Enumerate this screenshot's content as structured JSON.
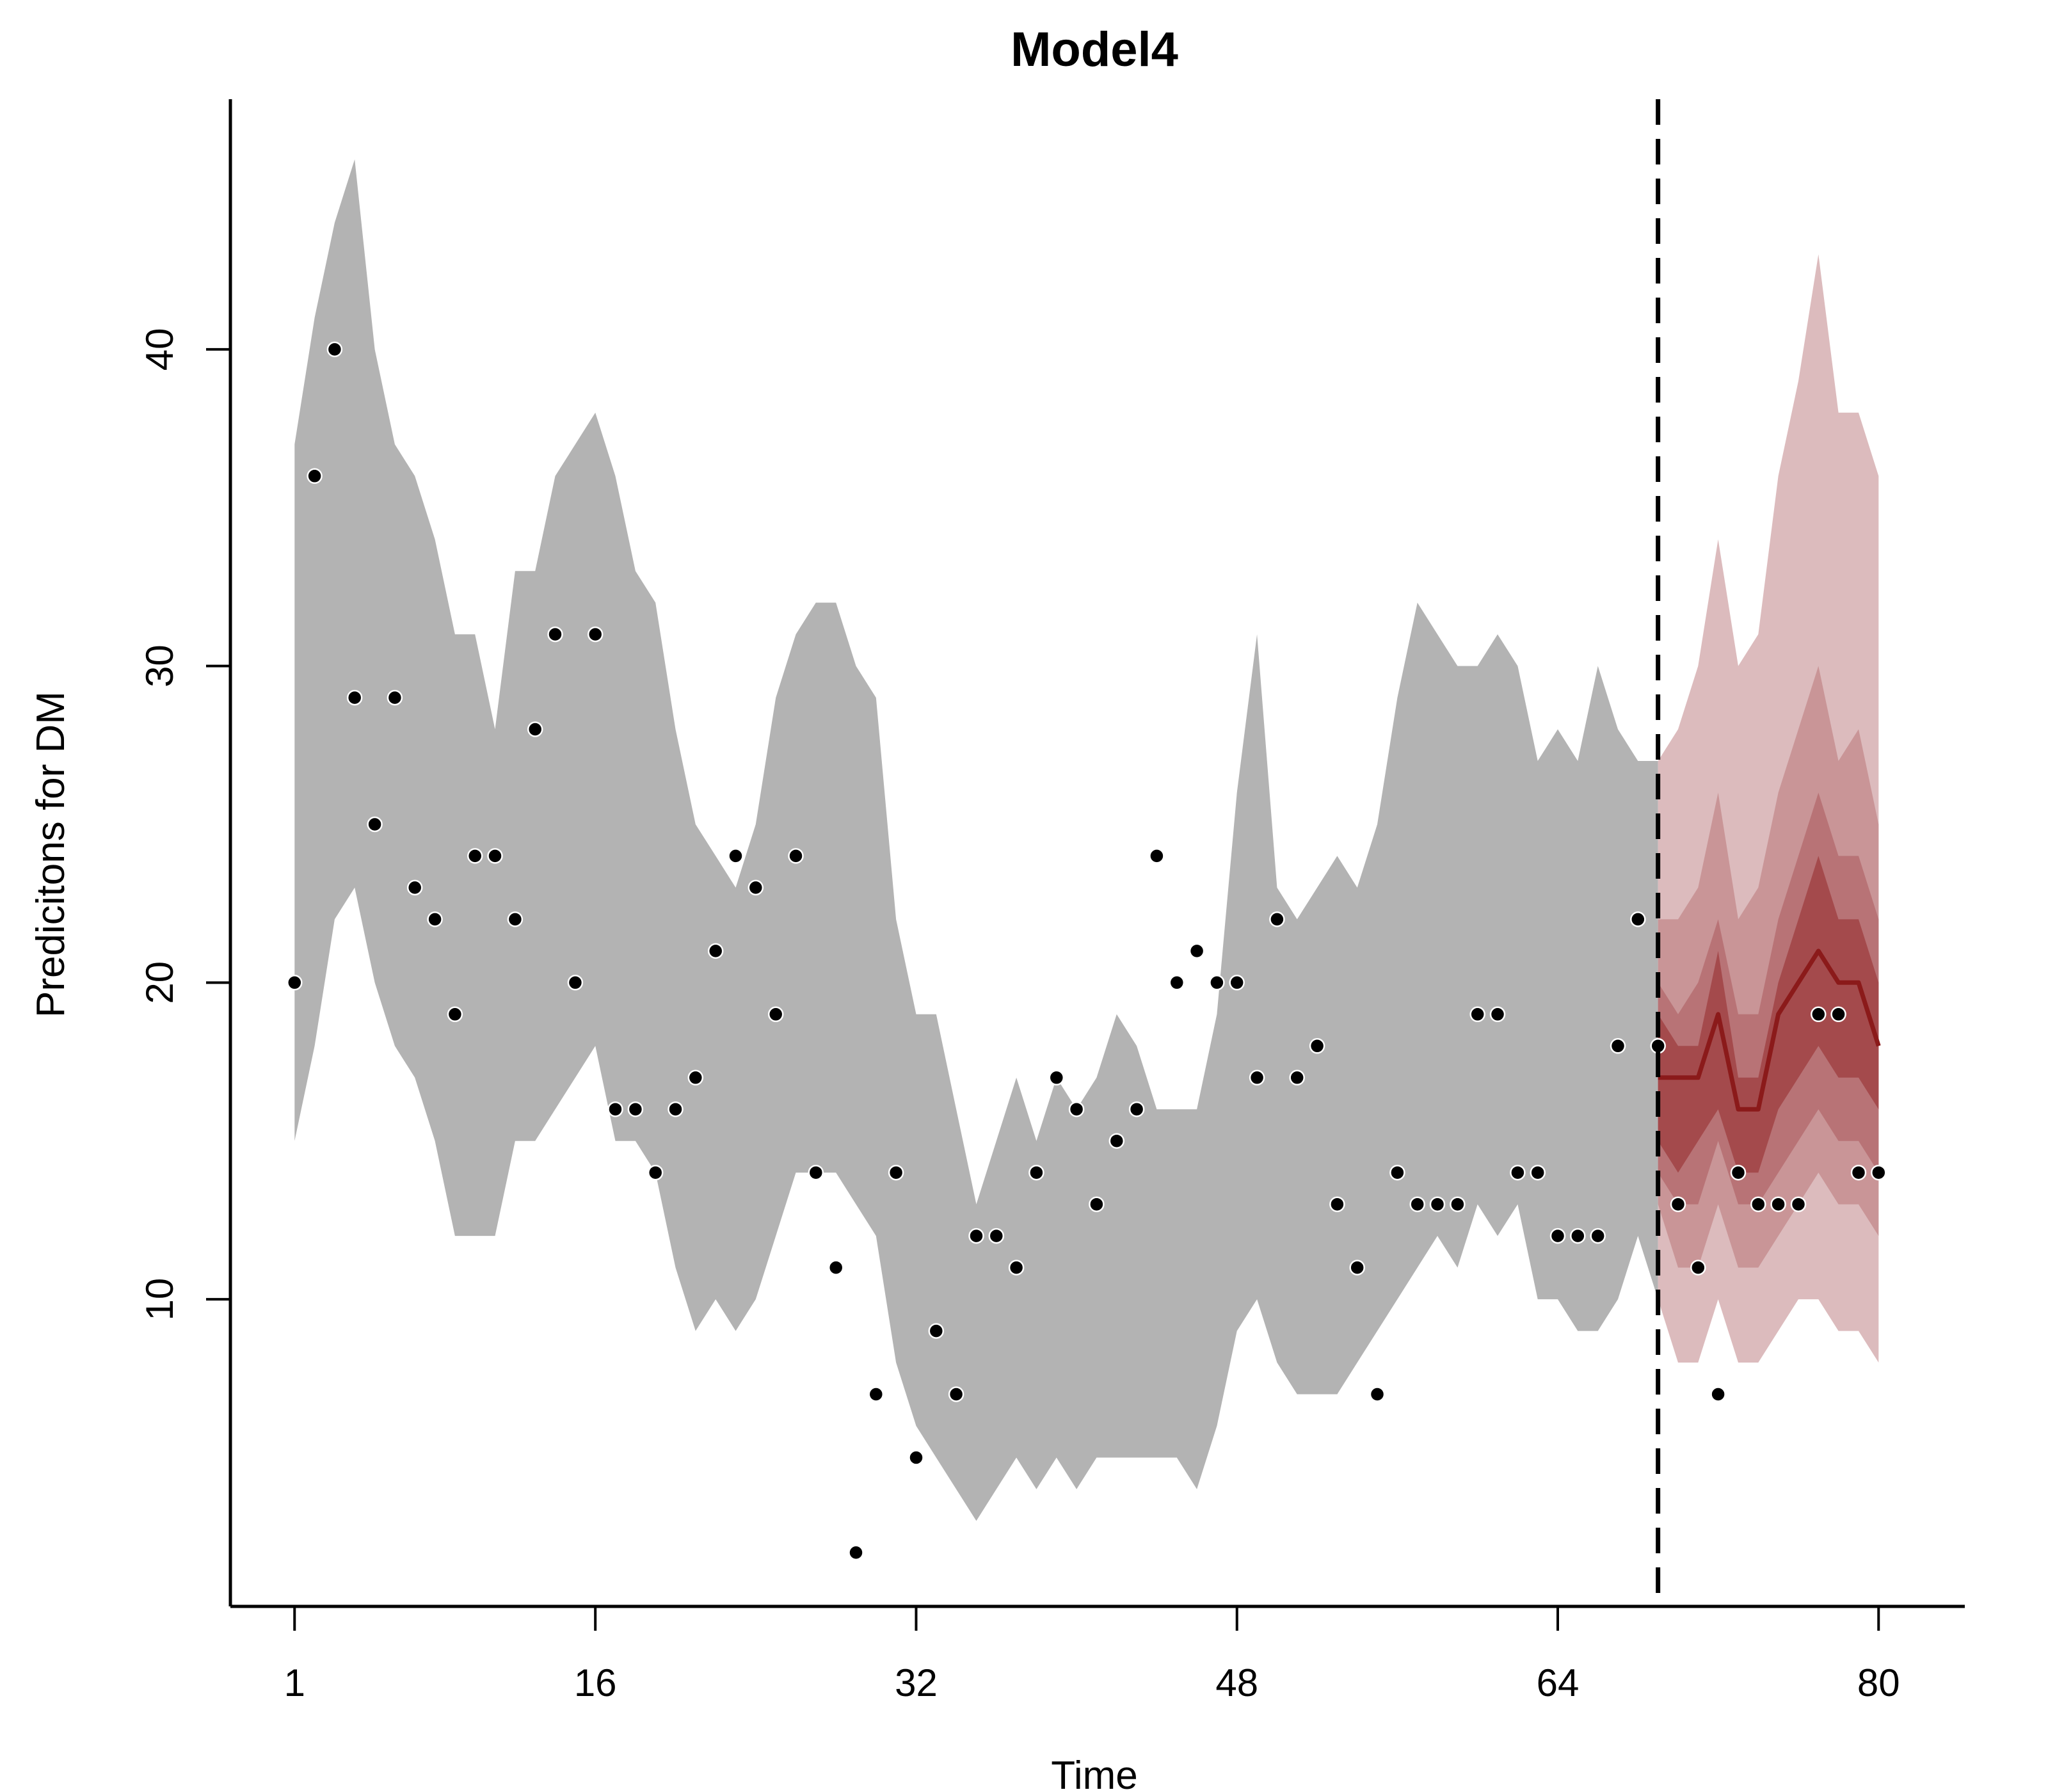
{
  "chart_data": {
    "type": "line",
    "title": "Model4",
    "xlabel": "Time",
    "ylabel": "Predicitons for DM",
    "xlim": [
      -2.2,
      84.3
    ],
    "ylim": [
      0.3,
      47.9
    ],
    "x_ticks": [
      1,
      16,
      32,
      48,
      64,
      80
    ],
    "y_ticks": [
      10,
      20,
      30,
      40
    ],
    "grid": false,
    "legend": "none",
    "colors": {
      "fit_band": "#b3b3b3",
      "forecast_band_outer": "#dcbbbd",
      "forecast_band_2": "#c99597",
      "forecast_band_3": "#b87376",
      "forecast_band_inner": "#a44a4c",
      "forecast_line": "#8b1a1a",
      "points": "#000000",
      "cutoff_line": "#000000"
    },
    "forecast_start": 69,
    "observed": {
      "x": [
        1,
        2,
        3,
        4,
        5,
        6,
        7,
        8,
        9,
        10,
        11,
        12,
        13,
        14,
        15,
        16,
        17,
        18,
        19,
        20,
        21,
        22,
        23,
        24,
        25,
        26,
        27,
        28,
        29,
        30,
        31,
        32,
        33,
        34,
        35,
        36,
        37,
        38,
        39,
        40,
        41,
        42,
        43,
        44,
        45,
        46,
        47,
        48,
        49,
        50,
        51,
        52,
        53,
        54,
        55,
        56,
        57,
        58,
        59,
        60,
        61,
        62,
        63,
        64,
        65,
        66,
        67,
        68,
        69,
        70,
        71,
        72,
        73,
        74,
        75,
        76,
        77,
        78,
        79,
        80
      ],
      "y": [
        20,
        36,
        40,
        29,
        25,
        29,
        23,
        22,
        19,
        24,
        24,
        22,
        28,
        31,
        20,
        31,
        16,
        16,
        14,
        16,
        17,
        21,
        24,
        23,
        19,
        24,
        14,
        11,
        2,
        7,
        14,
        5,
        9,
        7,
        12,
        12,
        11,
        14,
        17,
        16,
        13,
        15,
        16,
        24,
        20,
        21,
        20,
        20,
        17,
        22,
        17,
        18,
        13,
        11,
        7,
        14,
        13,
        13,
        13,
        19,
        19,
        14,
        14,
        12,
        12,
        12,
        18,
        22,
        18,
        13,
        11,
        7,
        14,
        13,
        13,
        13,
        19,
        19,
        14,
        14
      ]
    },
    "fit_band": {
      "x": [
        1,
        2,
        3,
        4,
        5,
        6,
        7,
        8,
        9,
        10,
        11,
        12,
        13,
        14,
        15,
        16,
        17,
        18,
        19,
        20,
        21,
        22,
        23,
        24,
        25,
        26,
        27,
        28,
        29,
        30,
        31,
        32,
        33,
        34,
        35,
        36,
        37,
        38,
        39,
        40,
        41,
        42,
        43,
        44,
        45,
        46,
        47,
        48,
        49,
        50,
        51,
        52,
        53,
        54,
        55,
        56,
        57,
        58,
        59,
        60,
        61,
        62,
        63,
        64,
        65,
        66,
        67,
        68,
        69
      ],
      "upper": [
        37,
        41,
        44,
        46,
        40,
        37,
        36,
        34,
        31,
        31,
        28,
        33,
        33,
        36,
        37,
        38,
        36,
        33,
        32,
        28,
        25,
        24,
        23,
        25,
        29,
        31,
        32,
        32,
        30,
        29,
        22,
        19,
        19,
        16,
        13,
        15,
        17,
        15,
        17,
        16,
        17,
        19,
        18,
        16,
        16,
        16,
        19,
        26,
        31,
        23,
        22,
        23,
        24,
        23,
        25,
        29,
        32,
        31,
        30,
        30,
        31,
        30,
        27,
        28,
        27,
        30,
        28,
        27,
        27
      ],
      "lower": [
        15,
        18,
        22,
        23,
        20,
        18,
        17,
        15,
        12,
        12,
        12,
        15,
        15,
        16,
        17,
        18,
        15,
        15,
        14,
        11,
        9,
        10,
        9,
        10,
        12,
        14,
        14,
        14,
        13,
        12,
        8,
        6,
        5,
        4,
        3,
        4,
        5,
        4,
        5,
        4,
        5,
        5,
        5,
        5,
        5,
        4,
        6,
        9,
        10,
        8,
        7,
        7,
        7,
        8,
        9,
        10,
        11,
        12,
        11,
        13,
        12,
        13,
        10,
        10,
        9,
        9,
        10,
        12,
        10
      ]
    },
    "forecast": {
      "x": [
        69,
        70,
        71,
        72,
        73,
        74,
        75,
        76,
        77,
        78,
        79,
        80
      ],
      "median": [
        17,
        17,
        17,
        19,
        16,
        16,
        19,
        20,
        21,
        20,
        20,
        18
      ],
      "bands": [
        {
          "upper": [
            27,
            28,
            30,
            34,
            30,
            31,
            36,
            39,
            43,
            38,
            38,
            36
          ],
          "lower": [
            10,
            8,
            8,
            10,
            8,
            8,
            9,
            10,
            10,
            9,
            9,
            8
          ]
        },
        {
          "upper": [
            22,
            22,
            23,
            26,
            22,
            23,
            26,
            28,
            30,
            27,
            28,
            25
          ],
          "lower": [
            13,
            11,
            11,
            13,
            11,
            11,
            12,
            13,
            14,
            13,
            13,
            12
          ]
        },
        {
          "upper": [
            20,
            19,
            20,
            22,
            19,
            19,
            22,
            24,
            26,
            24,
            24,
            22
          ],
          "lower": [
            14,
            13,
            13,
            15,
            13,
            13,
            14,
            15,
            16,
            15,
            15,
            14
          ]
        },
        {
          "upper": [
            19,
            18,
            18,
            21,
            17,
            17,
            20,
            22,
            24,
            22,
            22,
            20
          ],
          "lower": [
            15,
            14,
            15,
            16,
            14,
            14,
            16,
            17,
            18,
            17,
            17,
            16
          ]
        }
      ]
    }
  }
}
